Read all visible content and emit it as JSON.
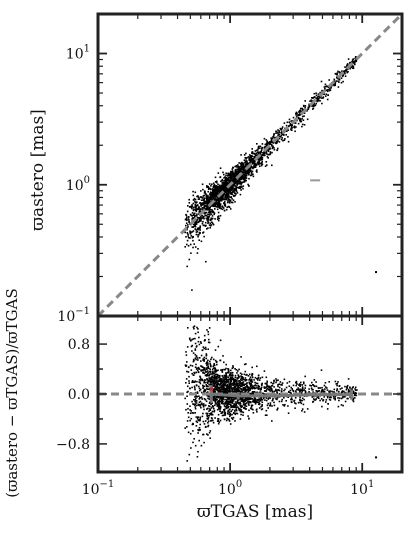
{
  "chart_data": [
    {
      "type": "scatter",
      "panel": "top",
      "ylabel": "ϖastero [mas]",
      "x_scale": "log",
      "y_scale": "log",
      "xlim": [
        0.1,
        20
      ],
      "ylim": [
        0.1,
        20
      ],
      "x_ticks": [
        "10−1",
        "100",
        "101"
      ],
      "y_ticks": [
        "10−1",
        "100",
        "101"
      ],
      "reference_line": {
        "style": "dashed",
        "color": "#888888",
        "relation": "y = x"
      },
      "point_color": "#000000",
      "outlier": {
        "x": 12.5,
        "y": 0.22
      },
      "error_bar_point": {
        "x": 4.4,
        "y": 1.08,
        "color": "#999999"
      },
      "points_description_cloud": {
        "x_range": [
          0.45,
          8
        ],
        "y_center_relation": "y ≈ x",
        "n_points": 2200
      }
    },
    {
      "type": "scatter",
      "panel": "bottom",
      "xlabel": "ϖTGAS [mas]",
      "ylabel": "(ϖastero − ϖTGAS)/ϖTGAS",
      "x_scale": "log",
      "xlim": [
        0.1,
        20
      ],
      "ylim": [
        -1.25,
        1.25
      ],
      "y_ticks": [
        "0.8",
        "0.0",
        "−0.8"
      ],
      "x_ticks": [
        "10−1",
        "100",
        "101"
      ],
      "reference_line": {
        "style": "dashed",
        "color": "#888888",
        "y": 0.0
      },
      "binned_median": {
        "color": "#777777",
        "points": [
          {
            "x": 0.72,
            "y": 0.0,
            "err": 0.13
          },
          {
            "x": 1.15,
            "y": -0.03,
            "err": 0.06
          },
          {
            "x": 2.2,
            "y": -0.03,
            "err": 0.04
          },
          {
            "x": 4.4,
            "y": -0.01,
            "err": 0.04
          },
          {
            "x": 8.3,
            "y": -0.01,
            "err": 0.08
          }
        ]
      },
      "highlight_point": {
        "x": 0.72,
        "y": 0.08,
        "color": "#d62728"
      },
      "outlier": {
        "x": 12.5,
        "y": -1.0
      }
    }
  ]
}
